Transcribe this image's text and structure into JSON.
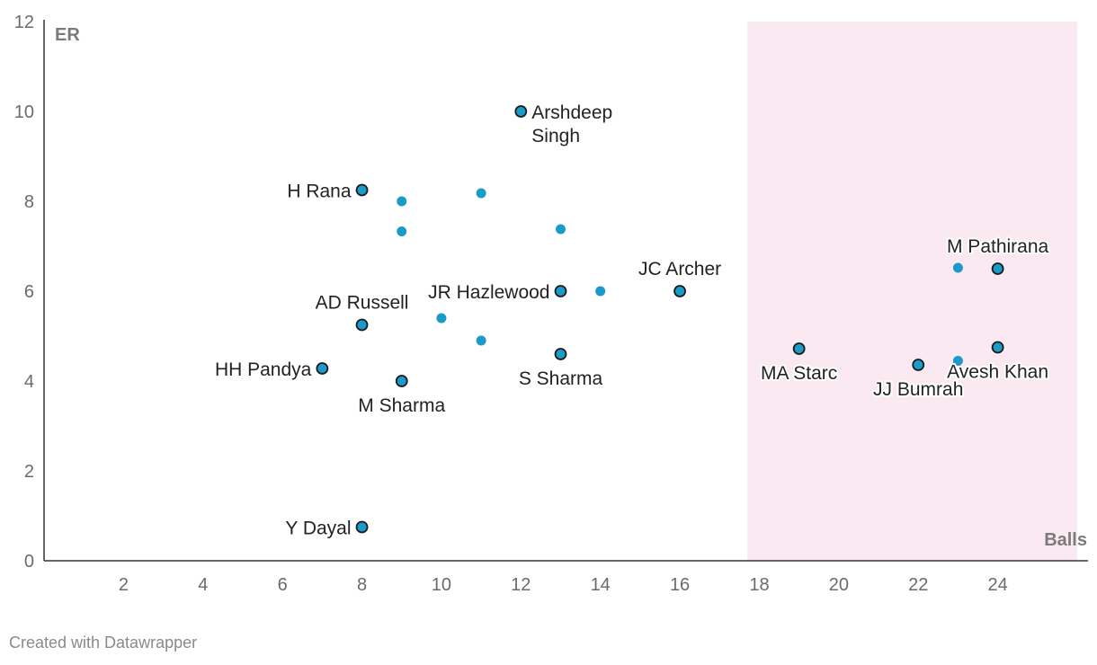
{
  "chart_data": {
    "type": "scatter",
    "xlabel": "Balls",
    "ylabel": "ER",
    "xlim": [
      0,
      26
    ],
    "ylim": [
      0,
      12
    ],
    "x_ticks": [
      2,
      4,
      6,
      8,
      10,
      12,
      14,
      16,
      18,
      20,
      22,
      24
    ],
    "y_ticks": [
      0,
      2,
      4,
      6,
      8,
      10,
      12
    ],
    "highlight_range": {
      "x_from": 17.7,
      "x_to": 26,
      "color": "#fbe9f1"
    },
    "colors": {
      "point": "#1a9bc9",
      "outline": "#1a1a1a",
      "axis": "#333333"
    },
    "labeled_points": [
      {
        "name": "Arshdeep Singh",
        "lines": [
          "Arshdeep",
          "Singh"
        ],
        "x": 12,
        "y": 10,
        "label_pos": "right"
      },
      {
        "name": "H Rana",
        "lines": [
          "H Rana"
        ],
        "x": 8,
        "y": 8.25,
        "label_pos": "left"
      },
      {
        "name": "JC Archer",
        "lines": [
          "JC Archer"
        ],
        "x": 16,
        "y": 6,
        "label_pos": "above"
      },
      {
        "name": "JR Hazlewood",
        "lines": [
          "JR Hazlewood"
        ],
        "x": 13,
        "y": 6,
        "label_pos": "left"
      },
      {
        "name": "AD Russell",
        "lines": [
          "AD Russell"
        ],
        "x": 8,
        "y": 5.25,
        "label_pos": "above"
      },
      {
        "name": "S Sharma",
        "lines": [
          "S Sharma"
        ],
        "x": 13,
        "y": 4.6,
        "label_pos": "below"
      },
      {
        "name": "HH Pandya",
        "lines": [
          "HH Pandya"
        ],
        "x": 7,
        "y": 4.28,
        "label_pos": "left"
      },
      {
        "name": "M Sharma",
        "lines": [
          "M Sharma"
        ],
        "x": 9,
        "y": 4,
        "label_pos": "below"
      },
      {
        "name": "Y Dayal",
        "lines": [
          "Y Dayal"
        ],
        "x": 8,
        "y": 0.75,
        "label_pos": "left"
      },
      {
        "name": "MA Starc",
        "lines": [
          "MA Starc"
        ],
        "x": 19,
        "y": 4.72,
        "label_pos": "below"
      },
      {
        "name": "JJ Bumrah",
        "lines": [
          "JJ Bumrah"
        ],
        "x": 22,
        "y": 4.36,
        "label_pos": "below"
      },
      {
        "name": "Avesh Khan",
        "lines": [
          "Avesh Khan"
        ],
        "x": 24,
        "y": 4.75,
        "label_pos": "below"
      },
      {
        "name": "M Pathirana",
        "lines": [
          "M Pathirana"
        ],
        "x": 24,
        "y": 6.5,
        "label_pos": "above"
      }
    ],
    "unlabeled_points": [
      {
        "x": 9,
        "y": 8.0
      },
      {
        "x": 11,
        "y": 8.18
      },
      {
        "x": 9,
        "y": 7.33
      },
      {
        "x": 13,
        "y": 7.38
      },
      {
        "x": 14,
        "y": 6.0
      },
      {
        "x": 10,
        "y": 5.4
      },
      {
        "x": 11,
        "y": 4.9
      },
      {
        "x": 23,
        "y": 6.52
      },
      {
        "x": 23,
        "y": 4.45
      }
    ]
  },
  "footer": {
    "credit": "Created with Datawrapper"
  }
}
